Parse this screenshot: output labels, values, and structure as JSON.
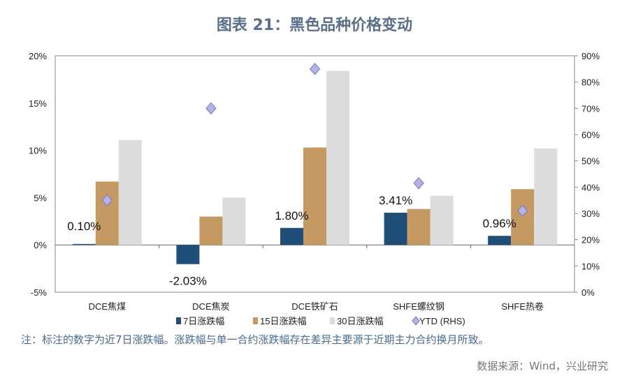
{
  "title": "图表 21：黑色品种价格变动",
  "note": "注：标注的数字为近7日涨跌幅。涨跌幅与单一合约涨跌幅存在差异主要源于近期主力合约换月所致。",
  "source": "数据来源：Wind，兴业研究",
  "chart_data": {
    "type": "bar",
    "categories": [
      "DCE焦煤",
      "DCE焦炭",
      "DCE铁矿石",
      "SHFE螺纹钢",
      "SHFE热卷"
    ],
    "series": [
      {
        "name": "7日涨跌幅",
        "axis": "left",
        "color": "#1f4e79",
        "values": [
          0.1,
          -2.03,
          1.8,
          3.41,
          0.96
        ]
      },
      {
        "name": "15日涨跌幅",
        "axis": "left",
        "color": "#c49a62",
        "values": [
          6.7,
          3.0,
          10.3,
          3.8,
          5.9
        ]
      },
      {
        "name": "30日涨跌幅",
        "axis": "left",
        "color": "#dcdcdc",
        "values": [
          11.1,
          5.0,
          18.4,
          5.2,
          10.2
        ]
      },
      {
        "name": "YTD (RHS)",
        "axis": "right",
        "type": "scatter",
        "marker": "diamond",
        "color": "#b3b3e6",
        "values": [
          35,
          70,
          85,
          41.5,
          31
        ]
      }
    ],
    "data_labels": [
      "0.10%",
      "-2.03%",
      "1.80%",
      "3.41%",
      "0.96%"
    ],
    "ylim_left": [
      -5,
      20
    ],
    "yticks_left": [
      "-5%",
      "0%",
      "5%",
      "10%",
      "15%",
      "20%"
    ],
    "ylim_right": [
      0,
      90
    ],
    "yticks_right": [
      "0%",
      "10%",
      "20%",
      "30%",
      "40%",
      "50%",
      "60%",
      "70%",
      "80%",
      "90%"
    ],
    "legend": "bottom"
  }
}
